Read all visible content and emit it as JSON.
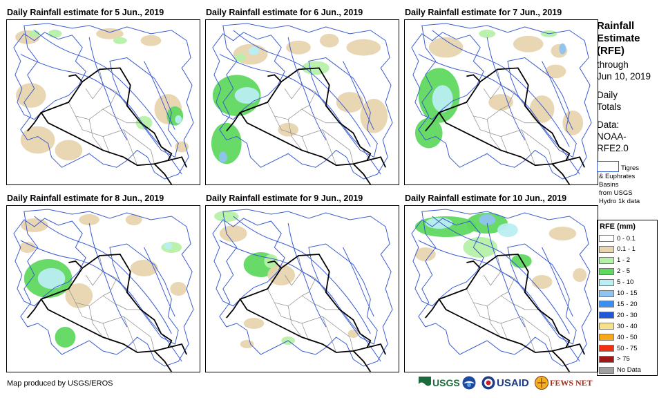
{
  "panels": [
    {
      "title": "Daily Rainfall estimate for 5 Jun., 2019",
      "rain_level": 0
    },
    {
      "title": "Daily Rainfall estimate for 6 Jun., 2019",
      "rain_level": 1
    },
    {
      "title": "Daily Rainfall estimate for 7 Jun., 2019",
      "rain_level": 2
    },
    {
      "title": "Daily Rainfall estimate for 8 Jun., 2019",
      "rain_level": 3
    },
    {
      "title": "Daily Rainfall estimate for 9 Jun., 2019",
      "rain_level": 4
    },
    {
      "title": "Daily Rainfall estimate for 10 Jun., 2019",
      "rain_level": 5
    }
  ],
  "legend": {
    "title_lines": [
      "Rainfall",
      "Estimate",
      "(RFE)"
    ],
    "through_lines": [
      "through",
      "Jun 10, 2019"
    ],
    "daily_lines": [
      "Daily",
      "Totals"
    ],
    "data_lines": [
      "Data:",
      "NOAA-",
      "RFE2.0"
    ],
    "basins_lines": [
      "Tigres",
      "& Euphrates",
      "Basins",
      "from USGS",
      "Hydro 1k data"
    ],
    "rfe_title": "RFE (mm)",
    "classes": [
      {
        "label": "0 - 0.1",
        "color": "#ffffff"
      },
      {
        "label": "0.1 - 1",
        "color": "#e8d5b0"
      },
      {
        "label": "1 - 2",
        "color": "#b6f0a8"
      },
      {
        "label": "2 - 5",
        "color": "#5fd85f"
      },
      {
        "label": "5 - 10",
        "color": "#b9eef2"
      },
      {
        "label": "10 - 15",
        "color": "#8fc3f0"
      },
      {
        "label": "15 - 20",
        "color": "#3a8ff0"
      },
      {
        "label": "20 - 30",
        "color": "#2056d8"
      },
      {
        "label": "30 - 40",
        "color": "#f5e18a"
      },
      {
        "label": "40 - 50",
        "color": "#f5a818"
      },
      {
        "label": "50 - 75",
        "color": "#f03010"
      },
      {
        "label": "> 75",
        "color": "#a01818"
      },
      {
        "label": "No Data",
        "color": "#a0a0a0"
      }
    ]
  },
  "credit": "Map produced by USGS/EROS",
  "logos": {
    "usgs": "USGS",
    "usaid": "USAID",
    "fewsnet": "FEWS NET"
  },
  "colors": {
    "river": "#3a5bd0",
    "border": "#000000",
    "admin": "#8a8a8a"
  }
}
